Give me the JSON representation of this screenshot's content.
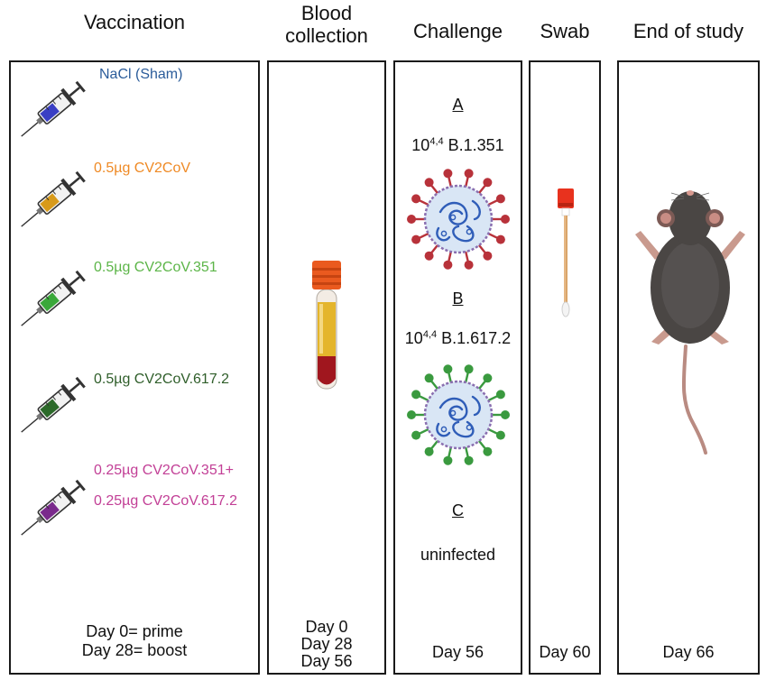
{
  "headers": {
    "vaccination": "Vaccination",
    "blood_line1": "Blood",
    "blood_line2": "collection",
    "challenge": "Challenge",
    "swab": "Swab",
    "end": "End of study"
  },
  "vaccination": {
    "groups": [
      {
        "label": "NaCl (Sham)",
        "color": "#2b5c9a",
        "fluid": "#3a3fc4"
      },
      {
        "label": "0.5µg CV2CoV",
        "color": "#ef8a25",
        "fluid": "#d89a1a"
      },
      {
        "label": "0.5µg CV2CoV.351",
        "color": "#5cb548",
        "fluid": "#3aa83a"
      },
      {
        "label": "0.5µg CV2CoV.617.2",
        "color": "#2f5e2a",
        "fluid": "#2c6a2a"
      },
      {
        "label_line1": "0.25µg CV2CoV.351+",
        "label_line2": "0.25µg CV2CoV.617.2",
        "color": "#c23f96",
        "fluid": "#7a2a8c"
      }
    ],
    "day_line1": "Day 0= prime",
    "day_line2": "Day 28= boost"
  },
  "blood": {
    "day_line1": "Day 0",
    "day_line2": "Day 28",
    "day_line3": "Day 56"
  },
  "challenge": {
    "a_label": "A",
    "a_dose_base": "10",
    "a_dose_exp": "4,4",
    "a_strain": " B.1.351",
    "b_label": "B",
    "b_dose_base": "10",
    "b_dose_exp": "4,4",
    "b_strain": " B.1.617.2",
    "c_label": "C",
    "c_text": "uninfected",
    "day": "Day 56",
    "virus_a_color": "#b8323a",
    "virus_b_color": "#3a9a3f"
  },
  "swab": {
    "day": "Day 60"
  },
  "end": {
    "day": "Day 66"
  }
}
